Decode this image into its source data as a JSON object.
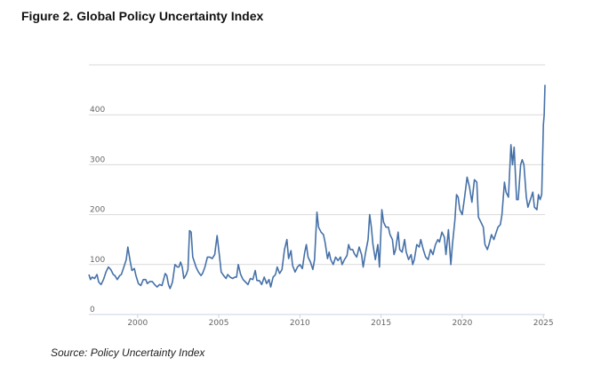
{
  "figure": {
    "title": "Figure 2. Global Policy Uncertainty Index",
    "source": "Source: Policy Uncertainty Index"
  },
  "chart_data": {
    "type": "line",
    "title": "Figure 2. Global Policy Uncertainty Index",
    "xlabel": "",
    "ylabel": "",
    "xlim": [
      1997.0,
      2025.1
    ],
    "ylim": [
      0,
      500
    ],
    "grid": true,
    "legend": "none",
    "x_ticks": [
      2000,
      2005,
      2010,
      2015,
      2020,
      2025
    ],
    "x_tick_labels": [
      "2000",
      "2005",
      "2010",
      "2015",
      "2020",
      "2025"
    ],
    "y_ticks": [
      0,
      100,
      200,
      300,
      400
    ],
    "y_tick_labels": [
      "0",
      "100",
      "200",
      "300",
      "400"
    ],
    "series": [
      {
        "name": "Global Policy Uncertainty Index",
        "color": "#4671a8",
        "points": [
          [
            1997.0,
            80
          ],
          [
            1997.1,
            70
          ],
          [
            1997.2,
            75
          ],
          [
            1997.35,
            72
          ],
          [
            1997.5,
            80
          ],
          [
            1997.6,
            65
          ],
          [
            1997.75,
            60
          ],
          [
            1997.9,
            70
          ],
          [
            1998.05,
            85
          ],
          [
            1998.2,
            95
          ],
          [
            1998.35,
            90
          ],
          [
            1998.5,
            80
          ],
          [
            1998.6,
            78
          ],
          [
            1998.75,
            70
          ],
          [
            1998.9,
            78
          ],
          [
            1999.0,
            80
          ],
          [
            1999.15,
            95
          ],
          [
            1999.3,
            110
          ],
          [
            1999.4,
            135
          ],
          [
            1999.55,
            105
          ],
          [
            1999.65,
            88
          ],
          [
            1999.8,
            92
          ],
          [
            1999.9,
            78
          ],
          [
            2000.05,
            62
          ],
          [
            2000.2,
            58
          ],
          [
            2000.35,
            70
          ],
          [
            2000.5,
            70
          ],
          [
            2000.6,
            62
          ],
          [
            2000.75,
            66
          ],
          [
            2000.9,
            66
          ],
          [
            2001.05,
            60
          ],
          [
            2001.2,
            55
          ],
          [
            2001.35,
            60
          ],
          [
            2001.5,
            58
          ],
          [
            2001.6,
            70
          ],
          [
            2001.7,
            82
          ],
          [
            2001.8,
            78
          ],
          [
            2001.9,
            60
          ],
          [
            2002.0,
            52
          ],
          [
            2002.15,
            65
          ],
          [
            2002.3,
            100
          ],
          [
            2002.45,
            95
          ],
          [
            2002.55,
            95
          ],
          [
            2002.65,
            105
          ],
          [
            2002.75,
            95
          ],
          [
            2002.85,
            72
          ],
          [
            2003.0,
            80
          ],
          [
            2003.1,
            90
          ],
          [
            2003.2,
            168
          ],
          [
            2003.3,
            165
          ],
          [
            2003.4,
            115
          ],
          [
            2003.5,
            105
          ],
          [
            2003.6,
            95
          ],
          [
            2003.75,
            85
          ],
          [
            2003.9,
            78
          ],
          [
            2004.0,
            82
          ],
          [
            2004.15,
            95
          ],
          [
            2004.3,
            115
          ],
          [
            2004.45,
            115
          ],
          [
            2004.6,
            112
          ],
          [
            2004.75,
            120
          ],
          [
            2004.9,
            158
          ],
          [
            2005.05,
            115
          ],
          [
            2005.15,
            85
          ],
          [
            2005.3,
            78
          ],
          [
            2005.45,
            72
          ],
          [
            2005.55,
            80
          ],
          [
            2005.7,
            75
          ],
          [
            2005.85,
            72
          ],
          [
            2006.0,
            75
          ],
          [
            2006.1,
            75
          ],
          [
            2006.2,
            100
          ],
          [
            2006.35,
            80
          ],
          [
            2006.5,
            70
          ],
          [
            2006.65,
            65
          ],
          [
            2006.8,
            60
          ],
          [
            2006.95,
            72
          ],
          [
            2007.1,
            70
          ],
          [
            2007.25,
            88
          ],
          [
            2007.35,
            68
          ],
          [
            2007.5,
            68
          ],
          [
            2007.65,
            60
          ],
          [
            2007.8,
            75
          ],
          [
            2007.95,
            62
          ],
          [
            2008.1,
            70
          ],
          [
            2008.2,
            55
          ],
          [
            2008.35,
            75
          ],
          [
            2008.5,
            80
          ],
          [
            2008.6,
            95
          ],
          [
            2008.75,
            82
          ],
          [
            2008.9,
            90
          ],
          [
            2009.05,
            130
          ],
          [
            2009.2,
            150
          ],
          [
            2009.3,
            112
          ],
          [
            2009.45,
            128
          ],
          [
            2009.55,
            98
          ],
          [
            2009.7,
            85
          ],
          [
            2009.85,
            95
          ],
          [
            2010.0,
            100
          ],
          [
            2010.15,
            92
          ],
          [
            2010.3,
            125
          ],
          [
            2010.4,
            140
          ],
          [
            2010.5,
            115
          ],
          [
            2010.65,
            105
          ],
          [
            2010.8,
            90
          ],
          [
            2010.9,
            110
          ],
          [
            2011.05,
            205
          ],
          [
            2011.15,
            175
          ],
          [
            2011.3,
            165
          ],
          [
            2011.45,
            160
          ],
          [
            2011.55,
            145
          ],
          [
            2011.7,
            112
          ],
          [
            2011.8,
            125
          ],
          [
            2011.9,
            110
          ],
          [
            2012.05,
            100
          ],
          [
            2012.2,
            115
          ],
          [
            2012.35,
            108
          ],
          [
            2012.5,
            115
          ],
          [
            2012.6,
            100
          ],
          [
            2012.75,
            110
          ],
          [
            2012.9,
            118
          ],
          [
            2013.0,
            140
          ],
          [
            2013.1,
            130
          ],
          [
            2013.25,
            130
          ],
          [
            2013.35,
            122
          ],
          [
            2013.5,
            115
          ],
          [
            2013.65,
            135
          ],
          [
            2013.8,
            120
          ],
          [
            2013.9,
            95
          ],
          [
            2014.05,
            125
          ],
          [
            2014.2,
            150
          ],
          [
            2014.3,
            200
          ],
          [
            2014.4,
            175
          ],
          [
            2014.5,
            140
          ],
          [
            2014.65,
            110
          ],
          [
            2014.8,
            140
          ],
          [
            2014.9,
            95
          ],
          [
            2015.05,
            210
          ],
          [
            2015.15,
            185
          ],
          [
            2015.3,
            175
          ],
          [
            2015.45,
            175
          ],
          [
            2015.55,
            160
          ],
          [
            2015.7,
            150
          ],
          [
            2015.8,
            120
          ],
          [
            2015.9,
            130
          ],
          [
            2016.05,
            165
          ],
          [
            2016.15,
            130
          ],
          [
            2016.3,
            125
          ],
          [
            2016.45,
            150
          ],
          [
            2016.55,
            125
          ],
          [
            2016.7,
            110
          ],
          [
            2016.85,
            120
          ],
          [
            2016.95,
            100
          ],
          [
            2017.05,
            110
          ],
          [
            2017.2,
            140
          ],
          [
            2017.35,
            135
          ],
          [
            2017.45,
            150
          ],
          [
            2017.6,
            130
          ],
          [
            2017.75,
            115
          ],
          [
            2017.9,
            110
          ],
          [
            2018.05,
            130
          ],
          [
            2018.2,
            120
          ],
          [
            2018.35,
            140
          ],
          [
            2018.5,
            150
          ],
          [
            2018.6,
            145
          ],
          [
            2018.75,
            165
          ],
          [
            2018.9,
            155
          ],
          [
            2019.0,
            120
          ],
          [
            2019.15,
            170
          ],
          [
            2019.3,
            100
          ],
          [
            2019.4,
            140
          ],
          [
            2019.55,
            190
          ],
          [
            2019.65,
            240
          ],
          [
            2019.75,
            235
          ],
          [
            2019.85,
            210
          ],
          [
            2020.0,
            200
          ],
          [
            2020.15,
            235
          ],
          [
            2020.3,
            275
          ],
          [
            2020.45,
            255
          ],
          [
            2020.6,
            225
          ],
          [
            2020.75,
            270
          ],
          [
            2020.9,
            265
          ],
          [
            2021.0,
            195
          ],
          [
            2021.15,
            185
          ],
          [
            2021.3,
            175
          ],
          [
            2021.4,
            140
          ],
          [
            2021.55,
            130
          ],
          [
            2021.65,
            140
          ],
          [
            2021.8,
            160
          ],
          [
            2021.95,
            150
          ],
          [
            2022.05,
            160
          ],
          [
            2022.2,
            175
          ],
          [
            2022.35,
            180
          ],
          [
            2022.45,
            200
          ],
          [
            2022.6,
            265
          ],
          [
            2022.7,
            245
          ],
          [
            2022.85,
            235
          ],
          [
            2023.0,
            340
          ],
          [
            2023.1,
            300
          ],
          [
            2023.2,
            335
          ],
          [
            2023.35,
            230
          ],
          [
            2023.45,
            230
          ],
          [
            2023.6,
            300
          ],
          [
            2023.7,
            310
          ],
          [
            2023.8,
            300
          ],
          [
            2023.95,
            235
          ],
          [
            2024.05,
            215
          ],
          [
            2024.2,
            230
          ],
          [
            2024.35,
            245
          ],
          [
            2024.45,
            215
          ],
          [
            2024.6,
            210
          ],
          [
            2024.7,
            240
          ],
          [
            2024.8,
            230
          ],
          [
            2024.9,
            240
          ],
          [
            2025.0,
            380
          ],
          [
            2025.05,
            400
          ],
          [
            2025.1,
            460
          ]
        ]
      }
    ]
  }
}
